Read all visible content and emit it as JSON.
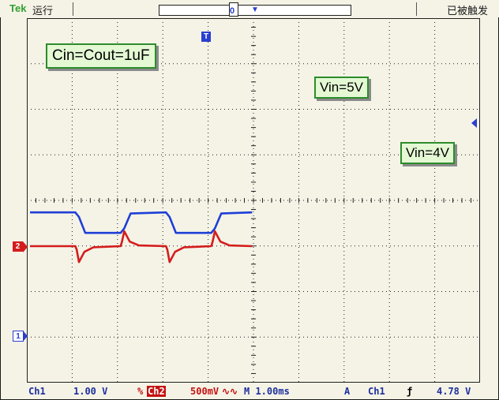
{
  "header": {
    "brand": "Tek",
    "run_state": "运行",
    "record_marker": "0",
    "trigger_state": "已被触发"
  },
  "annotations": {
    "caps": "Cin=Cout=1uF",
    "vin_high": "Vin=5V",
    "vin_low": "Vin=4V"
  },
  "channel_markers": {
    "ch2": "2",
    "ch1": "1",
    "trigger_pos": "T"
  },
  "status": {
    "ch1_label": "Ch1",
    "ch1_scale": "1.00 V",
    "ch2_label": "Ch2",
    "ch2_scale": "500mV",
    "bw_symbol": "∿∿",
    "timebase": "M 1.00ms",
    "acq_mode": "A",
    "trig_source": "Ch1",
    "trig_slope": "ƒ",
    "trig_level": "4.78 V"
  },
  "colors": {
    "ch1_trace": "#1e3fd6",
    "ch2_trace": "#d41c1c",
    "grid": "#202020",
    "annotation_bg": "#e4f8d4",
    "annotation_border": "#2d8c2d",
    "status_text": "#1d2f9e"
  },
  "chart_data": {
    "type": "line",
    "title": "",
    "xlabel": "",
    "ylabel": "",
    "x_divisions": 10,
    "y_divisions": 8,
    "x_unit_per_div_ms": 1.0,
    "series": [
      {
        "name": "Ch1",
        "x": [
          0,
          1.0,
          1.08,
          1.22,
          2.0,
          2.08,
          2.22,
          3.0,
          3.08,
          3.22,
          4.0,
          4.08,
          4.22,
          4.9
        ],
        "y_div": [
          5.5,
          5.5,
          5.3,
          4.6,
          4.6,
          4.8,
          5.45,
          5.5,
          5.3,
          4.6,
          4.6,
          4.8,
          5.45,
          5.5
        ]
      },
      {
        "name": "Ch2",
        "x": [
          0,
          1.0,
          1.03,
          1.08,
          1.2,
          1.4,
          2.0,
          2.03,
          2.08,
          2.2,
          2.4,
          3.0,
          3.03,
          3.08,
          3.2,
          3.4,
          4.0,
          4.03,
          4.08,
          4.2,
          4.4,
          4.9
        ],
        "y_div": [
          0,
          0,
          -0.15,
          -0.7,
          -0.25,
          -0.05,
          0,
          0.2,
          0.65,
          0.2,
          0.03,
          0,
          -0.15,
          -0.7,
          -0.25,
          -0.05,
          0,
          0.2,
          0.65,
          0.2,
          0.03,
          0
        ]
      }
    ]
  }
}
